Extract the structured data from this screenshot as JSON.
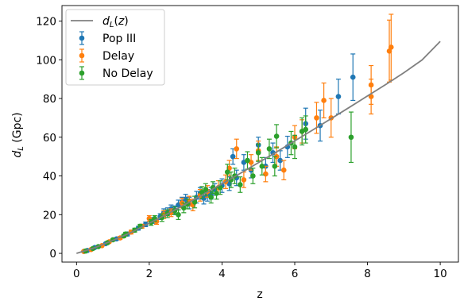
{
  "chart_data": {
    "type": "scatter",
    "title": "",
    "xlabel": "z",
    "ylabel": "d_L (Gpc)",
    "xlim": [
      -0.4,
      10.5
    ],
    "ylim": [
      -4.5,
      128
    ],
    "xticks": [
      0,
      2,
      4,
      6,
      8,
      10
    ],
    "yticks": [
      0,
      20,
      40,
      60,
      80,
      100,
      120
    ],
    "grid": false,
    "legend": {
      "position": "top-left",
      "entries": [
        {
          "label": "d_L(z)",
          "kind": "line",
          "color": "#808080"
        },
        {
          "label": "Pop III",
          "kind": "errorbar",
          "color": "#1f77b4"
        },
        {
          "label": "Delay",
          "kind": "errorbar",
          "color": "#ff7f0e"
        },
        {
          "label": "No Delay",
          "kind": "errorbar",
          "color": "#2ca02c"
        }
      ]
    },
    "curve": {
      "name": "d_L(z)",
      "color": "#808080",
      "points": [
        [
          0,
          0
        ],
        [
          0.5,
          2.9
        ],
        [
          1,
          6.7
        ],
        [
          1.5,
          10.8
        ],
        [
          2,
          15.6
        ],
        [
          2.5,
          20.4
        ],
        [
          3,
          25.4
        ],
        [
          3.5,
          30.6
        ],
        [
          4,
          35.9
        ],
        [
          4.5,
          41.3
        ],
        [
          5,
          46.8
        ],
        [
          5.5,
          52.4
        ],
        [
          6,
          58.1
        ],
        [
          6.5,
          63.8
        ],
        [
          7,
          69.6
        ],
        [
          7.5,
          75.4
        ],
        [
          8,
          81.3
        ],
        [
          8.5,
          87.2
        ],
        [
          9,
          93.3
        ],
        [
          9.5,
          99.9
        ],
        [
          10,
          109.5
        ]
      ]
    },
    "series": [
      {
        "name": "Pop III",
        "color": "#1f77b4",
        "points": [
          [
            0.2,
            1.0,
            0.2
          ],
          [
            0.3,
            1.5,
            0.3
          ],
          [
            0.5,
            3.0,
            0.3
          ],
          [
            0.8,
            5.0,
            0.5
          ],
          [
            1.1,
            7.5,
            0.6
          ],
          [
            1.4,
            10.0,
            1.0
          ],
          [
            1.7,
            13.0,
            1.0
          ],
          [
            1.9,
            15.0,
            1.2
          ],
          [
            2.1,
            17.0,
            1.5
          ],
          [
            2.3,
            19.0,
            1.5
          ],
          [
            2.4,
            21.0,
            2.0
          ],
          [
            2.5,
            21.5,
            2.0
          ],
          [
            2.6,
            23.0,
            2.0
          ],
          [
            2.7,
            22.5,
            2.0
          ],
          [
            2.8,
            25.0,
            2.5
          ],
          [
            2.9,
            26.5,
            2.5
          ],
          [
            3.0,
            28.0,
            2.5
          ],
          [
            3.1,
            26.0,
            3.0
          ],
          [
            3.3,
            29.0,
            3.0
          ],
          [
            3.4,
            31.0,
            3.0
          ],
          [
            3.5,
            28.5,
            3.0
          ],
          [
            3.6,
            30.0,
            3.0
          ],
          [
            3.7,
            31.0,
            3.0
          ],
          [
            3.8,
            33.0,
            3.0
          ],
          [
            4.0,
            35.0,
            3.5
          ],
          [
            4.2,
            36.0,
            3.5
          ],
          [
            4.3,
            50.0,
            4.0
          ],
          [
            4.4,
            39.0,
            4.0
          ],
          [
            4.6,
            47.0,
            4.0
          ],
          [
            4.8,
            43.0,
            4.0
          ],
          [
            5.0,
            56.0,
            4.0
          ],
          [
            5.2,
            45.0,
            4.5
          ],
          [
            5.4,
            52.0,
            5.0
          ],
          [
            5.6,
            48.0,
            5.0
          ],
          [
            5.8,
            55.0,
            5.5
          ],
          [
            6.3,
            67.0,
            8.0
          ],
          [
            6.7,
            66.0,
            8.0
          ],
          [
            7.2,
            81.0,
            9.0
          ],
          [
            7.6,
            91.0,
            12.0
          ]
        ]
      },
      {
        "name": "Delay",
        "color": "#ff7f0e",
        "points": [
          [
            0.2,
            1.0,
            0.2
          ],
          [
            0.4,
            2.0,
            0.3
          ],
          [
            0.7,
            4.0,
            0.4
          ],
          [
            0.9,
            6.0,
            0.5
          ],
          [
            1.2,
            8.0,
            0.7
          ],
          [
            1.5,
            11.0,
            1.0
          ],
          [
            1.8,
            14.0,
            1.0
          ],
          [
            2.0,
            18.0,
            1.5
          ],
          [
            2.2,
            16.5,
            1.5
          ],
          [
            2.4,
            20.0,
            2.0
          ],
          [
            2.6,
            21.0,
            2.0
          ],
          [
            2.9,
            26.0,
            2.5
          ],
          [
            3.1,
            27.0,
            2.5
          ],
          [
            3.2,
            25.0,
            3.0
          ],
          [
            3.4,
            30.0,
            3.0
          ],
          [
            3.6,
            32.0,
            3.0
          ],
          [
            3.9,
            34.0,
            3.5
          ],
          [
            4.1,
            37.0,
            3.5
          ],
          [
            4.2,
            44.0,
            4.0
          ],
          [
            4.4,
            54.0,
            5.0
          ],
          [
            4.6,
            38.0,
            4.0
          ],
          [
            4.8,
            47.0,
            4.0
          ],
          [
            5.0,
            53.0,
            5.0
          ],
          [
            5.2,
            41.0,
            4.0
          ],
          [
            5.5,
            50.0,
            5.0
          ],
          [
            5.7,
            43.0,
            5.0
          ],
          [
            6.0,
            60.0,
            6.0
          ],
          [
            6.2,
            63.0,
            6.0
          ],
          [
            6.6,
            70.0,
            8.0
          ],
          [
            6.8,
            79.0,
            9.0
          ],
          [
            7.0,
            70.0,
            10.0
          ],
          [
            8.1,
            87.0,
            10.0
          ],
          [
            8.1,
            81.0,
            9.0
          ],
          [
            8.6,
            104.5,
            16.0
          ],
          [
            8.65,
            106.5,
            17.0
          ]
        ]
      },
      {
        "name": "No Delay",
        "color": "#2ca02c",
        "points": [
          [
            0.25,
            1.2,
            0.2
          ],
          [
            0.45,
            2.5,
            0.3
          ],
          [
            0.6,
            3.5,
            0.3
          ],
          [
            0.85,
            5.5,
            0.5
          ],
          [
            1.0,
            7.0,
            0.6
          ],
          [
            1.3,
            9.0,
            0.8
          ],
          [
            1.35,
            10.0,
            0.9
          ],
          [
            1.6,
            12.0,
            1.0
          ],
          [
            1.75,
            14.0,
            1.0
          ],
          [
            2.05,
            16.0,
            1.5
          ],
          [
            2.15,
            18.0,
            1.5
          ],
          [
            2.35,
            18.5,
            2.0
          ],
          [
            2.5,
            20.5,
            2.0
          ],
          [
            2.7,
            22.0,
            2.0
          ],
          [
            2.8,
            20.0,
            2.5
          ],
          [
            2.95,
            23.5,
            2.5
          ],
          [
            3.05,
            25.5,
            2.5
          ],
          [
            3.25,
            26.5,
            3.0
          ],
          [
            3.45,
            31.5,
            3.0
          ],
          [
            3.55,
            33.0,
            3.0
          ],
          [
            3.7,
            29.0,
            3.0
          ],
          [
            3.75,
            34.0,
            3.0
          ],
          [
            3.85,
            31.0,
            3.0
          ],
          [
            3.95,
            34.0,
            3.5
          ],
          [
            4.15,
            42.0,
            4.0
          ],
          [
            4.25,
            38.0,
            4.0
          ],
          [
            4.35,
            40.0,
            4.0
          ],
          [
            4.5,
            35.5,
            4.0
          ],
          [
            4.7,
            48.0,
            4.5
          ],
          [
            4.85,
            40.0,
            4.0
          ],
          [
            5.0,
            52.0,
            4.5
          ],
          [
            5.1,
            45.0,
            4.5
          ],
          [
            5.3,
            54.0,
            5.0
          ],
          [
            5.45,
            45.0,
            5.0
          ],
          [
            5.5,
            60.5,
            6.0
          ],
          [
            5.9,
            57.0,
            6.0
          ],
          [
            6.0,
            55.0,
            6.0
          ],
          [
            6.2,
            63.0,
            7.0
          ],
          [
            6.3,
            64.0,
            7.0
          ],
          [
            7.55,
            60.0,
            13.0
          ]
        ]
      }
    ]
  }
}
